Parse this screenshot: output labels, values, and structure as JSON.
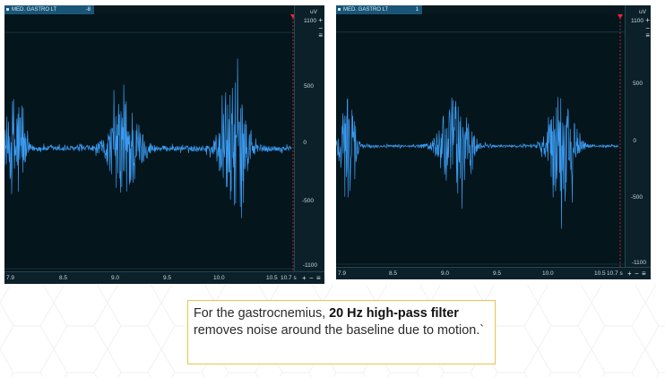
{
  "panels": [
    {
      "channel": "MED. GASTRO LT",
      "offset": "-8",
      "y_unit": "uV",
      "y_top": "1100",
      "y_ticks": [
        "500",
        "0",
        "-500",
        "-1100"
      ],
      "x_ticks": [
        "7.9",
        "8.5",
        "9.0",
        "9.5",
        "10.0",
        "10.5",
        "10.7 s"
      ]
    },
    {
      "channel": "MED. GASTRO LT",
      "offset": "1",
      "y_unit": "uV",
      "y_top": "1100",
      "y_ticks": [
        "500",
        "0",
        "-500",
        "-1100"
      ],
      "x_ticks": [
        "7.9",
        "8.5",
        "9.0",
        "9.5",
        "10.0",
        "10.5",
        "10.7 s"
      ]
    }
  ],
  "controls": {
    "plus": "+",
    "minus": "−",
    "menu": "≡"
  },
  "caption": {
    "part1": "For the gastrocnemius, ",
    "bold": "20 Hz high-pass filter",
    "part2": " removes noise around the baseline due to motion.`"
  },
  "colors": {
    "signal": "#3b9bf0",
    "background": "#04151c",
    "caption_border": "#e8c64a"
  },
  "icons": {
    "marker": "red-triangle-marker",
    "menu": "hamburger-icon"
  }
}
